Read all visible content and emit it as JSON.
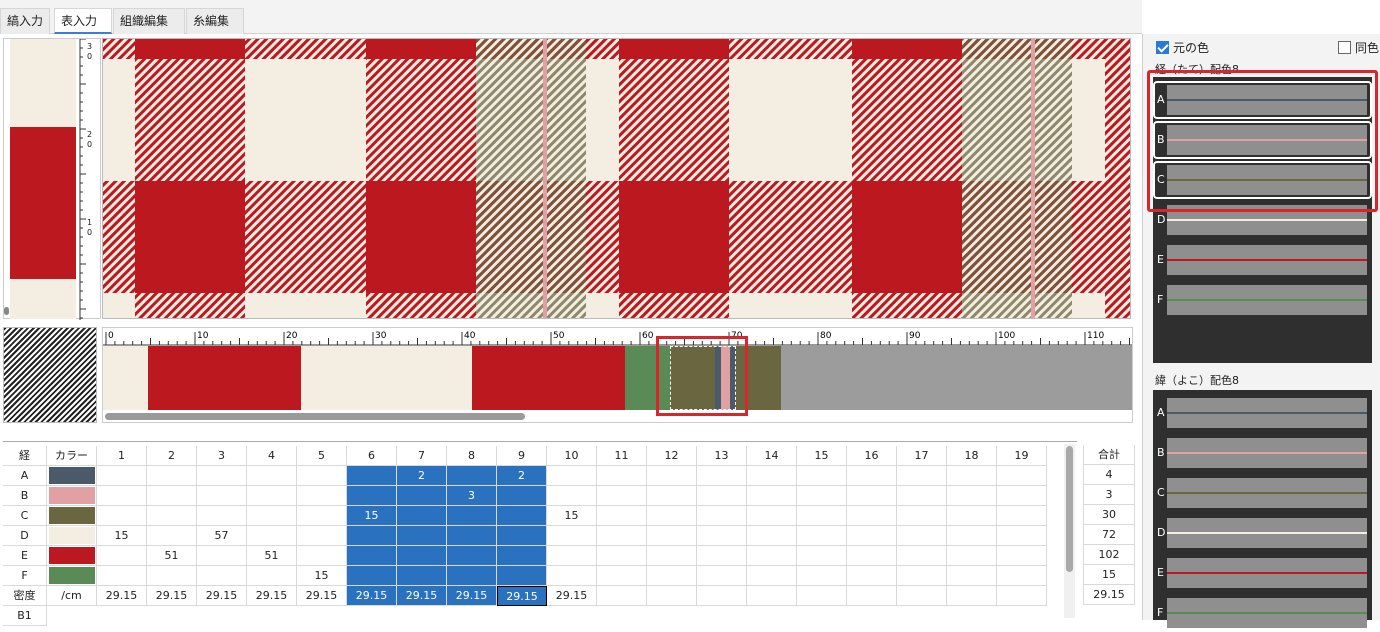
{
  "tabs": [
    {
      "label": "縞入力",
      "active": false
    },
    {
      "label": "表入力",
      "active": true
    },
    {
      "label": "組織編集",
      "active": false
    },
    {
      "label": "糸編集",
      "active": false
    }
  ],
  "weft_ruler_labels": [
    "3\n0",
    "2\n0",
    "1\n0"
  ],
  "warp_ruler_labels": [
    "0",
    "10",
    "20",
    "30",
    "40",
    "50",
    "60",
    "70",
    "80",
    "90",
    "100",
    "110"
  ],
  "colors": {
    "A": "#4b5a68",
    "B": "#e0a0a4",
    "C": "#6a6640",
    "D": "#f3ede2",
    "E": "#bc1820",
    "F": "#5a8a55",
    "accent": "#2a79d3",
    "highlight": "#d9262c"
  },
  "grid": {
    "header_warp": "経",
    "header_color": "カラー",
    "columns": [
      "1",
      "2",
      "3",
      "4",
      "5",
      "6",
      "7",
      "8",
      "9",
      "10",
      "11",
      "12",
      "13",
      "14",
      "15",
      "16",
      "17",
      "18",
      "19"
    ],
    "rows": [
      {
        "label": "A",
        "color": "#4b5a68",
        "values": [
          "",
          "",
          "",
          "",
          "",
          "",
          "2",
          "",
          "2",
          "",
          "",
          "",
          "",
          "",
          "",
          "",
          "",
          "",
          ""
        ]
      },
      {
        "label": "B",
        "color": "#e0a0a4",
        "values": [
          "",
          "",
          "",
          "",
          "",
          "",
          "",
          "3",
          "",
          "",
          "",
          "",
          "",
          "",
          "",
          "",
          "",
          "",
          ""
        ]
      },
      {
        "label": "C",
        "color": "#6a6640",
        "values": [
          "",
          "",
          "",
          "",
          "",
          "15",
          "",
          "",
          "",
          "15",
          "",
          "",
          "",
          "",
          "",
          "",
          "",
          "",
          ""
        ]
      },
      {
        "label": "D",
        "color": "#f3ede2",
        "values": [
          "15",
          "",
          "57",
          "",
          "",
          "",
          "",
          "",
          "",
          "",
          "",
          "",
          "",
          "",
          "",
          "",
          "",
          "",
          ""
        ]
      },
      {
        "label": "E",
        "color": "#bc1820",
        "values": [
          "",
          "51",
          "",
          "51",
          "",
          "",
          "",
          "",
          "",
          "",
          "",
          "",
          "",
          "",
          "",
          "",
          "",
          "",
          ""
        ]
      },
      {
        "label": "F",
        "color": "#5a8a55",
        "values": [
          "",
          "",
          "",
          "",
          "15",
          "",
          "",
          "",
          "",
          "",
          "",
          "",
          "",
          "",
          "",
          "",
          "",
          "",
          ""
        ]
      }
    ],
    "density_label": "密度",
    "density_unit": "/cm",
    "density_values": [
      "29.15",
      "29.15",
      "29.15",
      "29.15",
      "29.15",
      "29.15",
      "29.15",
      "29.15",
      "29.15",
      "29.15",
      "",
      "",
      "",
      "",
      "",
      "",
      "",
      "",
      ""
    ],
    "extra_row_label": "B1",
    "sum_header": "合計",
    "sums": [
      "4",
      "3",
      "30",
      "72",
      "102",
      "15",
      "29.15"
    ]
  },
  "side": {
    "orig_color_label": "元の色",
    "orig_color_checked": true,
    "same_color_label": "同色",
    "same_color_checked": false,
    "warp_title": "経（たて）配色8",
    "weft_title": "緯（よこ）配色8",
    "warp_yarns": [
      {
        "letter": "A",
        "color": "#4b5a68"
      },
      {
        "letter": "B",
        "color": "#e0a0a4"
      },
      {
        "letter": "C",
        "color": "#6a6640"
      },
      {
        "letter": "D",
        "color": "#f3ede2"
      },
      {
        "letter": "E",
        "color": "#bc1820"
      },
      {
        "letter": "F",
        "color": "#5a8a55"
      }
    ],
    "weft_yarns": [
      {
        "letter": "A",
        "color": "#4b5a68"
      },
      {
        "letter": "B",
        "color": "#e0a0a4"
      },
      {
        "letter": "C",
        "color": "#6a6640"
      },
      {
        "letter": "D",
        "color": "#f3ede2"
      },
      {
        "letter": "E",
        "color": "#bc1820"
      },
      {
        "letter": "F",
        "color": "#5a8a55"
      }
    ]
  }
}
